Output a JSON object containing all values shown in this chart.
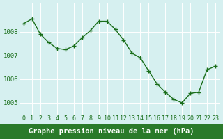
{
  "x": [
    0,
    1,
    2,
    3,
    4,
    5,
    6,
    7,
    8,
    9,
    10,
    11,
    12,
    13,
    14,
    15,
    16,
    17,
    18,
    19,
    20,
    21,
    22,
    23
  ],
  "y": [
    1008.35,
    1008.55,
    1007.9,
    1007.55,
    1007.3,
    1007.25,
    1007.4,
    1007.75,
    1008.05,
    1008.45,
    1008.45,
    1008.1,
    1007.65,
    1007.1,
    1006.9,
    1006.35,
    1005.8,
    1005.45,
    1005.15,
    1005.0,
    1005.4,
    1005.45,
    1006.4,
    1006.55
  ],
  "line_color": "#1a6e1a",
  "marker": "+",
  "marker_size": 4,
  "bg_color": "#d6f0f0",
  "grid_color": "#ffffff",
  "tick_color": "#1a6e1a",
  "xlabel": "Graphe pression niveau de la mer (hPa)",
  "yticks": [
    1005,
    1006,
    1007,
    1008
  ],
  "ylim": [
    1004.5,
    1009.2
  ],
  "xlim": [
    -0.5,
    23.5
  ],
  "bottom_bg": "#2a7a2a",
  "label_fontsize": 6,
  "axis_label_fontsize": 7.5
}
